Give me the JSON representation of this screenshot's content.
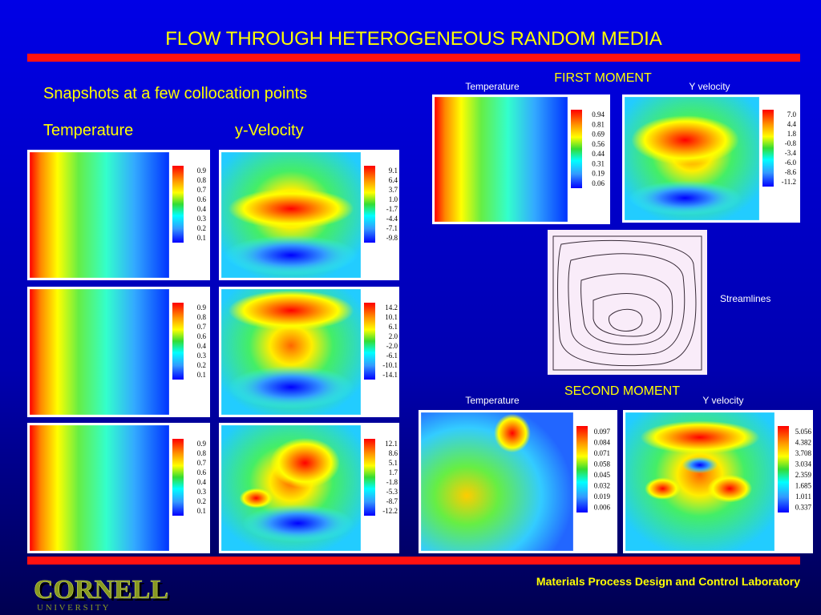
{
  "title": "FLOW THROUGH HETEROGENEOUS RANDOM MEDIA",
  "subtitle": "Snapshots at a few collocation points",
  "column_heads": [
    "Temperature",
    "y-Velocity"
  ],
  "snapshots": [
    {
      "temperature_legend": [
        "0.9",
        "0.8",
        "0.7",
        "0.6",
        "0.4",
        "0.3",
        "0.2",
        "0.1"
      ],
      "velocity_legend": [
        "9.1",
        "6.4",
        "3.7",
        "1.0",
        "-1.7",
        "-4.4",
        "-7.1",
        "-9.8"
      ]
    },
    {
      "temperature_legend": [
        "0.9",
        "0.8",
        "0.7",
        "0.6",
        "0.4",
        "0.3",
        "0.2",
        "0.1"
      ],
      "velocity_legend": [
        "14.2",
        "10.1",
        "6.1",
        "2.0",
        "-2.0",
        "-6.1",
        "-10.1",
        "-14.1"
      ]
    },
    {
      "temperature_legend": [
        "0.9",
        "0.8",
        "0.7",
        "0.6",
        "0.4",
        "0.3",
        "0.2",
        "0.1"
      ],
      "velocity_legend": [
        "12.1",
        "8.6",
        "5.1",
        "1.7",
        "-1.8",
        "-5.3",
        "-8.7",
        "-12.2"
      ]
    }
  ],
  "first_moment": {
    "title": "FIRST MOMENT",
    "temperature_label": "Temperature",
    "velocity_label": "Y velocity",
    "temperature_legend": [
      "0.94",
      "0.81",
      "0.69",
      "0.56",
      "0.44",
      "0.31",
      "0.19",
      "0.06"
    ],
    "velocity_legend": [
      "7.0",
      "4.4",
      "1.8",
      "-0.8",
      "-3.4",
      "-6.0",
      "-8.6",
      "-11.2"
    ]
  },
  "streamlines_label": "Streamlines",
  "second_moment": {
    "title": "SECOND MOMENT",
    "temperature_label": "Temperature",
    "velocity_label": "Y velocity",
    "temperature_legend": [
      "0.097",
      "0.084",
      "0.071",
      "0.058",
      "0.045",
      "0.032",
      "0.019",
      "0.006"
    ],
    "velocity_legend": [
      "5.056",
      "4.382",
      "3.708",
      "3.034",
      "2.359",
      "1.685",
      "1.011",
      "0.337"
    ]
  },
  "footer": {
    "lab": "Materials Process Design and Control Laboratory",
    "logo": "CORNELL",
    "logo_sub": "U N I V E R S I T Y"
  }
}
